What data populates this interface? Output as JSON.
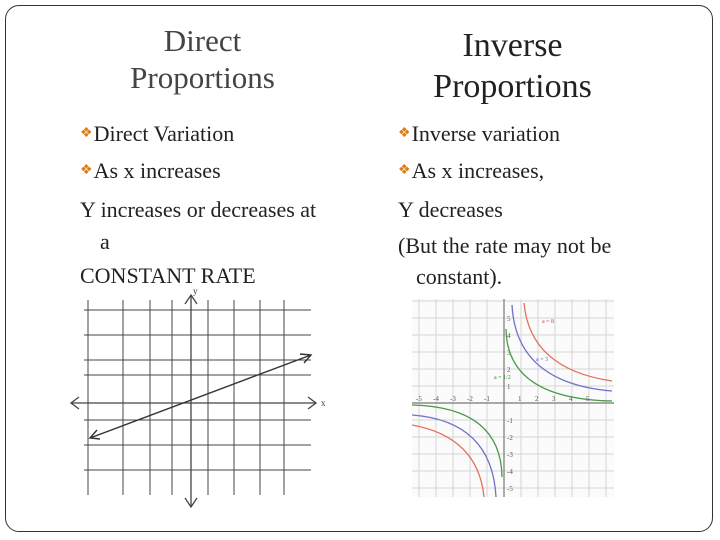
{
  "left": {
    "title_line1": "Direct",
    "title_line2": "Proportions",
    "bullet1": "Direct Variation",
    "bullet2": "As x increases",
    "body1": "Y increases or decreases at",
    "body2": "a",
    "body3": "CONSTANT RATE",
    "graph": {
      "x_axis_label": "x",
      "y_axis_label": "y"
    }
  },
  "right": {
    "title_line1": "Inverse",
    "title_line2": "Proportions",
    "bullet1": "Inverse variation",
    "bullet2": "As x increases,",
    "body1": "Y decreases",
    "body2": "(But the rate may not be",
    "body3": "constant).",
    "graph": {
      "x_ticks": [
        "-5",
        "-4",
        "-3",
        "-2",
        "-1",
        "",
        "1",
        "2",
        "3",
        "4",
        "5"
      ],
      "y_ticks": [
        "5",
        "4",
        "3",
        "2",
        "1",
        "-1",
        "-2",
        "-3",
        "-4",
        "-5"
      ],
      "curve_labels": [
        "a = 8",
        "a = 3",
        "a = 1/2"
      ]
    }
  },
  "colors": {
    "bullet": "#e07a10",
    "curve1": "#e0705a",
    "curve2": "#6f72c9",
    "curve3": "#4a9a4a"
  }
}
